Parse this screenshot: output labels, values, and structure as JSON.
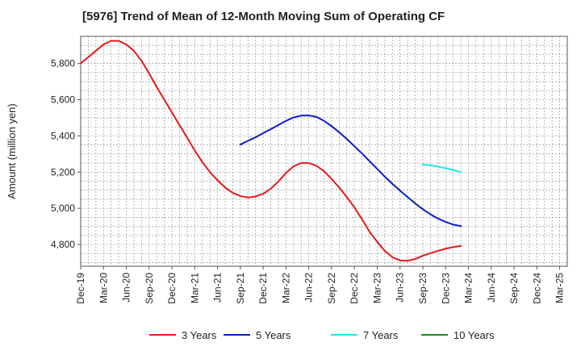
{
  "chart_data": {
    "type": "line",
    "title": "[5976]  Trend of Mean of 12-Month Moving Sum of Operating CF",
    "xlabel": "",
    "ylabel": "Amount (million yen)",
    "ylim": [
      4680,
      5950
    ],
    "yticks": [
      4800,
      5000,
      5200,
      5400,
      5600,
      5800
    ],
    "ytick_labels": [
      "4,800",
      "5,000",
      "5,200",
      "5,400",
      "5,600",
      "5,800"
    ],
    "x_start": "Dec-19",
    "x_months": 64,
    "xtick_labels": [
      "Dec-19",
      "Mar-20",
      "Jun-20",
      "Sep-20",
      "Dec-20",
      "Mar-21",
      "Jun-21",
      "Sep-21",
      "Dec-21",
      "Mar-22",
      "Jun-22",
      "Sep-22",
      "Dec-22",
      "Mar-23",
      "Jun-23",
      "Sep-23",
      "Dec-23",
      "Mar-24",
      "Jun-24",
      "Sep-24",
      "Dec-24",
      "Mar-25"
    ],
    "grid": true,
    "legend_position": "bottom",
    "series": [
      {
        "name": "3 Years",
        "color": "#e31a1c",
        "start_index": 0,
        "values": [
          5800,
          5835,
          5870,
          5905,
          5925,
          5925,
          5905,
          5870,
          5815,
          5745,
          5670,
          5600,
          5530,
          5460,
          5390,
          5320,
          5255,
          5200,
          5155,
          5115,
          5085,
          5068,
          5060,
          5065,
          5080,
          5108,
          5148,
          5195,
          5232,
          5250,
          5250,
          5235,
          5205,
          5162,
          5115,
          5062,
          5005,
          4940,
          4870,
          4815,
          4765,
          4730,
          4712,
          4710,
          4720,
          4738,
          4752,
          4765,
          4777,
          4786,
          4792
        ]
      },
      {
        "name": "5 Years",
        "color": "#0a1ec8",
        "start_index": 21,
        "values": [
          5352,
          5373,
          5392,
          5415,
          5437,
          5460,
          5483,
          5502,
          5512,
          5513,
          5505,
          5483,
          5454,
          5420,
          5383,
          5343,
          5303,
          5260,
          5218,
          5175,
          5135,
          5098,
          5062,
          5027,
          4995,
          4967,
          4943,
          4925,
          4910,
          4902
        ]
      },
      {
        "name": "7 Years",
        "color": "#1ee6e6",
        "start_index": 45,
        "values": [
          5242,
          5238,
          5230,
          5222,
          5212,
          5200
        ]
      },
      {
        "name": "10 Years",
        "color": "#1a8c1a",
        "start_index": 45,
        "values": []
      }
    ]
  }
}
